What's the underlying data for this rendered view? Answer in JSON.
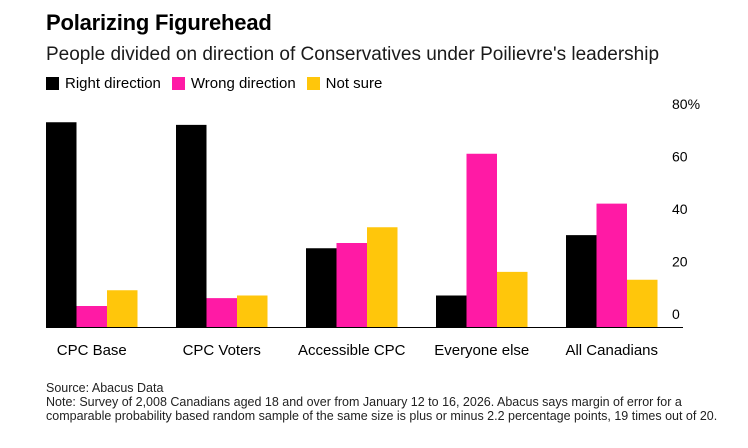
{
  "title": "Polarizing Figurehead",
  "subtitle": "People divided on direction of Conservatives under Poilievre's leadership",
  "legend": [
    {
      "label": "Right direction",
      "color": "#000000"
    },
    {
      "label": "Wrong direction",
      "color": "#ff1aa5"
    },
    {
      "label": "Not sure",
      "color": "#ffc60b"
    }
  ],
  "chart_data": {
    "type": "bar",
    "title": "Polarizing Figurehead",
    "subtitle": "People divided on direction of Conservatives under Poilievre's leadership",
    "categories": [
      "CPC Base",
      "CPC Voters",
      "Accessible CPC",
      "Everyone else",
      "All Canadians"
    ],
    "series": [
      {
        "name": "Right direction",
        "color": "#000000",
        "values": [
          78,
          77,
          30,
          12,
          35
        ]
      },
      {
        "name": "Wrong direction",
        "color": "#ff1aa5",
        "values": [
          8,
          11,
          32,
          66,
          47
        ]
      },
      {
        "name": "Not sure",
        "color": "#ffc60b",
        "values": [
          14,
          12,
          38,
          21,
          18
        ]
      }
    ],
    "ylim": [
      0,
      80
    ],
    "yticks": [
      0,
      20,
      40,
      60,
      80
    ],
    "ytick_labels": [
      "0",
      "20",
      "40",
      "60",
      "80%"
    ],
    "yaxis_position": "right",
    "grid": false,
    "xlabel": "",
    "ylabel": ""
  },
  "footer": {
    "source": "Source: Abacus Data",
    "note": "Note: Survey of 2,008 Canadians aged 18 and over from January 12 to 16, 2026. Abacus says margin of error for a comparable probability based random sample of the same size is plus or minus 2.2 percentage points, 19 times out of 20."
  }
}
